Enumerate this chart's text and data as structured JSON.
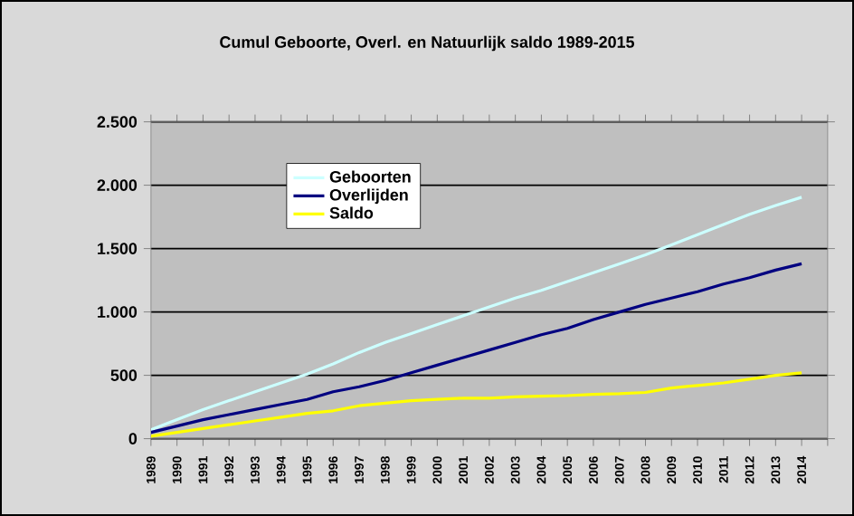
{
  "chart_data": {
    "type": "line",
    "title": "Cumul Geboorte, Overl. en Natuurlijk saldo 1989-2015",
    "categories": [
      "1989",
      "1990",
      "1991",
      "1992",
      "1993",
      "1994",
      "1995",
      "1996",
      "1997",
      "1998",
      "1999",
      "2000",
      "2001",
      "2002",
      "2003",
      "2004",
      "2005",
      "2006",
      "2007",
      "2008",
      "2009",
      "2010",
      "2011",
      "2012",
      "2013",
      "2014"
    ],
    "series": [
      {
        "name": "Geboorten",
        "color": "#ccffff",
        "values": [
          70,
          150,
          230,
          300,
          370,
          440,
          510,
          590,
          680,
          760,
          830,
          900,
          970,
          1040,
          1110,
          1170,
          1240,
          1310,
          1380,
          1450,
          1530,
          1610,
          1690,
          1770,
          1840,
          1905
        ]
      },
      {
        "name": "Overlijden",
        "color": "#000080",
        "values": [
          50,
          100,
          150,
          190,
          230,
          270,
          310,
          370,
          410,
          460,
          520,
          580,
          640,
          700,
          760,
          820,
          870,
          940,
          1000,
          1060,
          1110,
          1160,
          1220,
          1270,
          1330,
          1380
        ]
      },
      {
        "name": "Saldo",
        "color": "#ffff00",
        "values": [
          20,
          50,
          80,
          110,
          140,
          170,
          200,
          220,
          260,
          280,
          300,
          310,
          320,
          320,
          330,
          335,
          340,
          350,
          355,
          365,
          400,
          420,
          440,
          470,
          500,
          520
        ]
      }
    ],
    "ylim": [
      0,
      2500
    ],
    "yticks": [
      {
        "value": 0,
        "label": "0"
      },
      {
        "value": 500,
        "label": "500"
      },
      {
        "value": 1000,
        "label": "1.000"
      },
      {
        "value": 1500,
        "label": "1.500"
      },
      {
        "value": 2000,
        "label": "2.000"
      },
      {
        "value": 2500,
        "label": "2.500"
      }
    ],
    "grid": "y",
    "legend": "top left",
    "marker": "none",
    "line_style": "solid"
  }
}
